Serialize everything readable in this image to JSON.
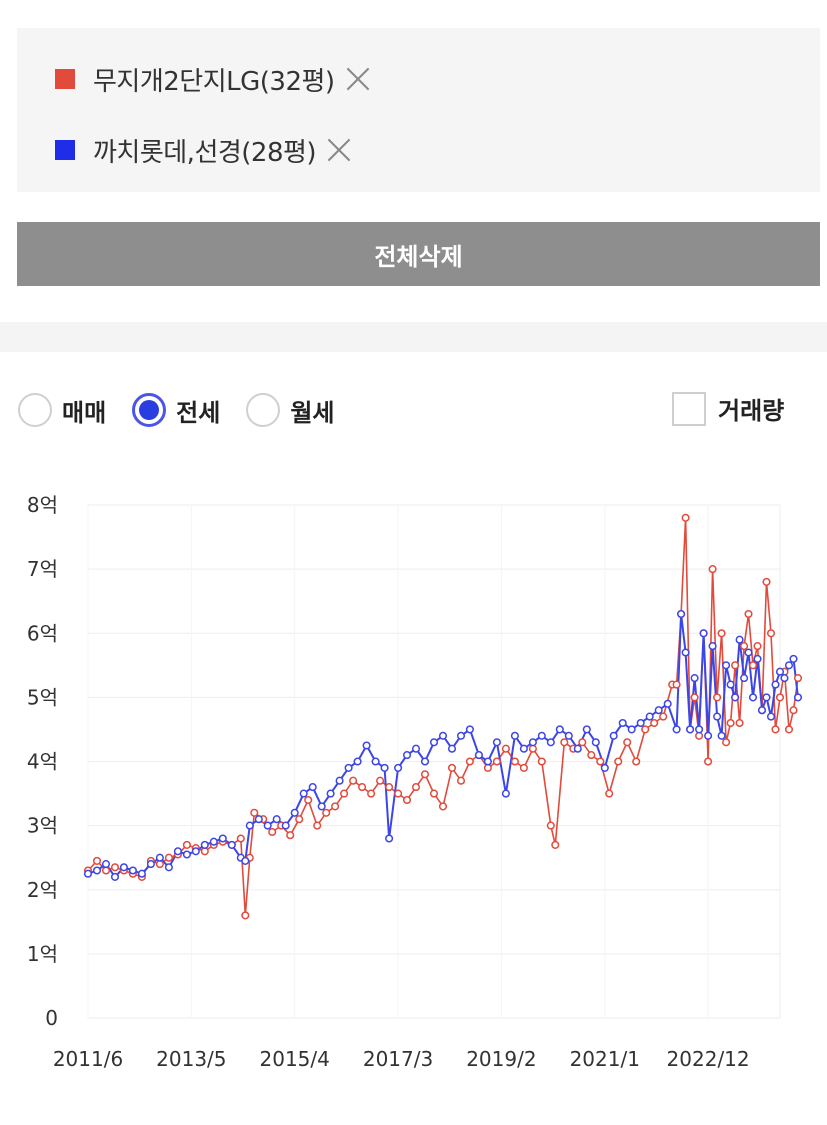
{
  "legend": {
    "items": [
      {
        "label": "무지개2단지LG(32평)",
        "color": "#e24a3b"
      },
      {
        "label": "까치롯데,선경(28평)",
        "color": "#1f2de8"
      }
    ]
  },
  "actions": {
    "delete_all_label": "전체삭제"
  },
  "filters": {
    "options": [
      {
        "label": "매매",
        "selected": false
      },
      {
        "label": "전세",
        "selected": true
      },
      {
        "label": "월세",
        "selected": false
      }
    ],
    "volume_label": "거래량",
    "volume_checked": false
  },
  "chart_data": {
    "type": "line",
    "y_tick_labels": [
      "0",
      "1억",
      "2억",
      "3억",
      "4억",
      "5억",
      "6억",
      "7억",
      "8억"
    ],
    "ylim": [
      0,
      8
    ],
    "x_tick_labels": [
      "2011/6",
      "2013/5",
      "2015/4",
      "2017/3",
      "2019/2",
      "2021/1",
      "2022/12"
    ],
    "xlim": [
      "2011/6",
      "2024/4"
    ],
    "grid": true,
    "series": [
      {
        "name": "무지개2단지LG(32평)",
        "color": "#e24a3b",
        "points": [
          [
            "2011/6",
            2.3
          ],
          [
            "2011/8",
            2.45
          ],
          [
            "2011/10",
            2.3
          ],
          [
            "2011/12",
            2.35
          ],
          [
            "2012/2",
            2.3
          ],
          [
            "2012/4",
            2.25
          ],
          [
            "2012/6",
            2.2
          ],
          [
            "2012/8",
            2.45
          ],
          [
            "2012/10",
            2.4
          ],
          [
            "2012/12",
            2.5
          ],
          [
            "2013/2",
            2.55
          ],
          [
            "2013/4",
            2.7
          ],
          [
            "2013/6",
            2.65
          ],
          [
            "2013/8",
            2.6
          ],
          [
            "2013/10",
            2.7
          ],
          [
            "2013/12",
            2.75
          ],
          [
            "2014/2",
            2.7
          ],
          [
            "2014/4",
            2.8
          ],
          [
            "2014/5",
            1.6
          ],
          [
            "2014/6",
            2.5
          ],
          [
            "2014/7",
            3.2
          ],
          [
            "2014/9",
            3.1
          ],
          [
            "2014/11",
            2.9
          ],
          [
            "2015/1",
            3.0
          ],
          [
            "2015/3",
            2.85
          ],
          [
            "2015/5",
            3.1
          ],
          [
            "2015/7",
            3.4
          ],
          [
            "2015/9",
            3.0
          ],
          [
            "2015/11",
            3.2
          ],
          [
            "2016/1",
            3.3
          ],
          [
            "2016/3",
            3.5
          ],
          [
            "2016/5",
            3.7
          ],
          [
            "2016/7",
            3.6
          ],
          [
            "2016/9",
            3.5
          ],
          [
            "2016/11",
            3.7
          ],
          [
            "2017/1",
            3.6
          ],
          [
            "2017/3",
            3.5
          ],
          [
            "2017/5",
            3.4
          ],
          [
            "2017/7",
            3.6
          ],
          [
            "2017/9",
            3.8
          ],
          [
            "2017/11",
            3.5
          ],
          [
            "2018/1",
            3.3
          ],
          [
            "2018/3",
            3.9
          ],
          [
            "2018/5",
            3.7
          ],
          [
            "2018/7",
            4.0
          ],
          [
            "2018/9",
            4.1
          ],
          [
            "2018/11",
            3.9
          ],
          [
            "2019/1",
            4.0
          ],
          [
            "2019/3",
            4.2
          ],
          [
            "2019/5",
            4.0
          ],
          [
            "2019/7",
            3.9
          ],
          [
            "2019/9",
            4.2
          ],
          [
            "2019/11",
            4.0
          ],
          [
            "2020/1",
            3.0
          ],
          [
            "2020/2",
            2.7
          ],
          [
            "2020/4",
            4.3
          ],
          [
            "2020/6",
            4.2
          ],
          [
            "2020/8",
            4.3
          ],
          [
            "2020/10",
            4.1
          ],
          [
            "2020/12",
            4.0
          ],
          [
            "2021/2",
            3.5
          ],
          [
            "2021/4",
            4.0
          ],
          [
            "2021/6",
            4.3
          ],
          [
            "2021/8",
            4.0
          ],
          [
            "2021/10",
            4.5
          ],
          [
            "2021/12",
            4.6
          ],
          [
            "2022/2",
            4.7
          ],
          [
            "2022/4",
            5.2
          ],
          [
            "2022/5",
            5.2
          ],
          [
            "2022/6",
            6.3
          ],
          [
            "2022/7",
            7.8
          ],
          [
            "2022/8",
            4.5
          ],
          [
            "2022/9",
            5.0
          ],
          [
            "2022/10",
            4.4
          ],
          [
            "2022/11",
            6.0
          ],
          [
            "2022/12",
            4.0
          ],
          [
            "2023/1",
            7.0
          ],
          [
            "2023/2",
            5.0
          ],
          [
            "2023/3",
            6.0
          ],
          [
            "2023/4",
            4.3
          ],
          [
            "2023/5",
            4.6
          ],
          [
            "2023/6",
            5.5
          ],
          [
            "2023/7",
            4.6
          ],
          [
            "2023/8",
            5.8
          ],
          [
            "2023/9",
            6.3
          ],
          [
            "2023/10",
            5.5
          ],
          [
            "2023/11",
            5.8
          ],
          [
            "2023/12",
            4.8
          ],
          [
            "2024/1",
            6.8
          ],
          [
            "2024/2",
            6.0
          ],
          [
            "2024/3",
            4.5
          ],
          [
            "2024/4",
            5.0
          ],
          [
            "2024/5",
            5.4
          ],
          [
            "2024/6",
            4.5
          ],
          [
            "2024/7",
            4.8
          ],
          [
            "2024/8",
            5.3
          ]
        ]
      },
      {
        "name": "까치롯데,선경(28평)",
        "color": "#3c46e6",
        "points": [
          [
            "2011/6",
            2.25
          ],
          [
            "2011/8",
            2.3
          ],
          [
            "2011/10",
            2.4
          ],
          [
            "2011/12",
            2.2
          ],
          [
            "2012/2",
            2.35
          ],
          [
            "2012/4",
            2.3
          ],
          [
            "2012/6",
            2.25
          ],
          [
            "2012/8",
            2.4
          ],
          [
            "2012/10",
            2.5
          ],
          [
            "2012/12",
            2.35
          ],
          [
            "2013/2",
            2.6
          ],
          [
            "2013/4",
            2.55
          ],
          [
            "2013/6",
            2.6
          ],
          [
            "2013/8",
            2.7
          ],
          [
            "2013/10",
            2.75
          ],
          [
            "2013/12",
            2.8
          ],
          [
            "2014/2",
            2.7
          ],
          [
            "2014/4",
            2.5
          ],
          [
            "2014/5",
            2.45
          ],
          [
            "2014/6",
            3.0
          ],
          [
            "2014/8",
            3.1
          ],
          [
            "2014/10",
            3.0
          ],
          [
            "2014/12",
            3.1
          ],
          [
            "2015/2",
            3.0
          ],
          [
            "2015/4",
            3.2
          ],
          [
            "2015/6",
            3.5
          ],
          [
            "2015/8",
            3.6
          ],
          [
            "2015/10",
            3.3
          ],
          [
            "2015/12",
            3.5
          ],
          [
            "2016/2",
            3.7
          ],
          [
            "2016/4",
            3.9
          ],
          [
            "2016/6",
            4.0
          ],
          [
            "2016/8",
            4.25
          ],
          [
            "2016/10",
            4.0
          ],
          [
            "2016/12",
            3.9
          ],
          [
            "2017/1",
            2.8
          ],
          [
            "2017/3",
            3.9
          ],
          [
            "2017/5",
            4.1
          ],
          [
            "2017/7",
            4.2
          ],
          [
            "2017/9",
            4.0
          ],
          [
            "2017/11",
            4.3
          ],
          [
            "2018/1",
            4.4
          ],
          [
            "2018/3",
            4.2
          ],
          [
            "2018/5",
            4.4
          ],
          [
            "2018/7",
            4.5
          ],
          [
            "2018/9",
            4.1
          ],
          [
            "2018/11",
            4.0
          ],
          [
            "2019/1",
            4.3
          ],
          [
            "2019/3",
            3.5
          ],
          [
            "2019/5",
            4.4
          ],
          [
            "2019/7",
            4.2
          ],
          [
            "2019/9",
            4.3
          ],
          [
            "2019/11",
            4.4
          ],
          [
            "2020/1",
            4.3
          ],
          [
            "2020/3",
            4.5
          ],
          [
            "2020/5",
            4.4
          ],
          [
            "2020/7",
            4.2
          ],
          [
            "2020/9",
            4.5
          ],
          [
            "2020/11",
            4.3
          ],
          [
            "2021/1",
            3.9
          ],
          [
            "2021/3",
            4.4
          ],
          [
            "2021/5",
            4.6
          ],
          [
            "2021/7",
            4.5
          ],
          [
            "2021/9",
            4.6
          ],
          [
            "2021/11",
            4.7
          ],
          [
            "2022/1",
            4.8
          ],
          [
            "2022/3",
            4.9
          ],
          [
            "2022/5",
            4.5
          ],
          [
            "2022/6",
            6.3
          ],
          [
            "2022/7",
            5.7
          ],
          [
            "2022/8",
            4.5
          ],
          [
            "2022/9",
            5.3
          ],
          [
            "2022/10",
            4.5
          ],
          [
            "2022/11",
            6.0
          ],
          [
            "2022/12",
            4.4
          ],
          [
            "2023/1",
            5.8
          ],
          [
            "2023/2",
            4.7
          ],
          [
            "2023/3",
            4.4
          ],
          [
            "2023/4",
            5.5
          ],
          [
            "2023/5",
            5.2
          ],
          [
            "2023/6",
            5.0
          ],
          [
            "2023/7",
            5.9
          ],
          [
            "2023/8",
            5.3
          ],
          [
            "2023/9",
            5.7
          ],
          [
            "2023/10",
            5.0
          ],
          [
            "2023/11",
            5.6
          ],
          [
            "2023/12",
            4.8
          ],
          [
            "2024/1",
            5.0
          ],
          [
            "2024/2",
            4.7
          ],
          [
            "2024/3",
            5.2
          ],
          [
            "2024/4",
            5.4
          ],
          [
            "2024/5",
            5.3
          ],
          [
            "2024/6",
            5.5
          ],
          [
            "2024/7",
            5.6
          ],
          [
            "2024/8",
            5.0
          ]
        ]
      }
    ]
  }
}
